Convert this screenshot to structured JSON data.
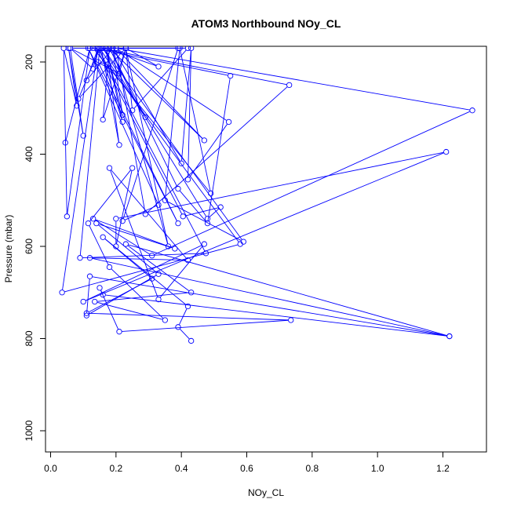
{
  "chart_data": {
    "type": "line",
    "title": "ATOM3 Northbound NOy_CL",
    "xlabel": "NOy_CL",
    "ylabel": "Pressure (mbar)",
    "xlim": [
      0,
      1.3
    ],
    "ylim": [
      1000,
      170
    ],
    "y_reversed": true,
    "x_ticks": [
      "0.0",
      "0.2",
      "0.4",
      "0.6",
      "0.8",
      "1.0",
      "1.2"
    ],
    "y_ticks": [
      "200",
      "400",
      "600",
      "800",
      "1000"
    ],
    "grid": false,
    "legend": "none",
    "series_color": "#0000ff",
    "marker": "open-circle",
    "series": [
      {
        "x": [
          0.045,
          0.12,
          0.05,
          0.04,
          0.08,
          0.055,
          0.1,
          0.06,
          0.21,
          0.23,
          0.085,
          0.15,
          0.06,
          0.13,
          0.145,
          0.11,
          0.19,
          0.22,
          0.17,
          0.33,
          0.23,
          0.16,
          0.18,
          0.29,
          0.15,
          0.22,
          0.17,
          0.21,
          0.155,
          0.42,
          0.25,
          0.23,
          0.36,
          0.19,
          0.4,
          0.43,
          0.42,
          0.545,
          0.2,
          0.47,
          0.18,
          0.39,
          0.48,
          0.55,
          0.13,
          0.49,
          0.395,
          0.35,
          0.59,
          0.16,
          0.48,
          0.52,
          0.405,
          0.14,
          0.39,
          0.22,
          0.33,
          0.115,
          0.39,
          0.145,
          0.175,
          0.58,
          0.035,
          0.145,
          0.475,
          0.09,
          0.15,
          0.73,
          0.29,
          0.2,
          1.29,
          0.31,
          0.13,
          0.38,
          0.14,
          0.33,
          0.11,
          0.12,
          1.22,
          0.12,
          0.42,
          0.18,
          0.33,
          0.47,
          0.1,
          1.21,
          0.2,
          0.2,
          0.25,
          0.115,
          0.18,
          0.35,
          0.135,
          0.43,
          0.23,
          1.22,
          0.16,
          0.15,
          0.21,
          0.735,
          0.11,
          0.31,
          0.16,
          0.42,
          0.39,
          0.43
        ],
        "y": [
          375,
          170,
          535,
          170,
          295,
          170,
          360,
          170,
          225,
          170,
          280,
          170,
          170,
          215,
          170,
          240,
          170,
          315,
          170,
          210,
          170,
          325,
          170,
          320,
          170,
          330,
          170,
          380,
          170,
          170,
          305,
          170,
          600,
          170,
          420,
          170,
          455,
          330,
          170,
          370,
          170,
          475,
          550,
          230,
          170,
          485,
          170,
          500,
          590,
          170,
          540,
          515,
          535,
          170,
          170,
          545,
          510,
          170,
          550,
          200,
          205,
          595,
          700,
          170,
          615,
          625,
          170,
          250,
          530,
          170,
          305,
          620,
          540,
          605,
          550,
          660,
          750,
          665,
          795,
          625,
          630,
          430,
          715,
          595,
          720,
          395,
          540,
          600,
          430,
          550,
          645,
          760,
          720,
          700,
          595,
          795,
          705,
          690,
          785,
          760,
          745,
          670,
          580,
          730,
          775,
          805
        ]
      }
    ]
  }
}
